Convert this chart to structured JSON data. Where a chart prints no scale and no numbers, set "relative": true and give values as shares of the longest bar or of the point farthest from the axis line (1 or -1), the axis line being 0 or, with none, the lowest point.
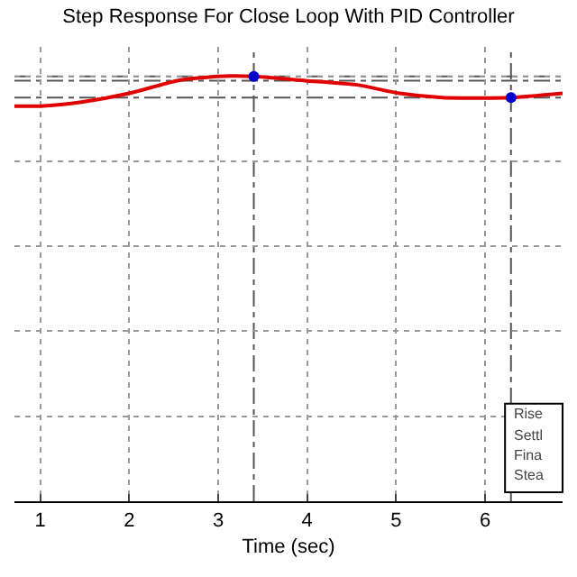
{
  "chart_data": {
    "type": "line",
    "title": "Step Response For Close Loop With PID Controller",
    "xlabel": "Time (sec)",
    "relative": true,
    "xlim": [
      0.71,
      6.87
    ],
    "xticks": [
      1,
      2,
      3,
      4,
      5,
      6
    ],
    "grid": true,
    "line_style": "solid",
    "series": [
      {
        "color": "#e00000",
        "marker": "none",
        "x": [
          0.71,
          1.0,
          1.48,
          2.0,
          2.54,
          3.0,
          3.4,
          3.98,
          4.56,
          5.04,
          5.52,
          6.29,
          6.87
        ],
        "values": [
          0.93,
          0.93,
          0.94,
          0.96,
          0.99,
          1.0,
          1.0,
          0.99,
          0.98,
          0.96,
          0.95,
          0.95,
          0.96
        ]
      },
      {
        "type": "scatter",
        "color": "#0000cc",
        "marker": "circle",
        "x": [
          3.4,
          6.29
        ],
        "values": [
          1.0,
          0.95
        ]
      }
    ],
    "ref_lines": [
      {
        "axis": "x",
        "value": 3.4,
        "color": "#555555",
        "line_style": "dashdot"
      },
      {
        "axis": "x",
        "value": 6.29,
        "color": "#555555",
        "line_style": "dashdot"
      },
      {
        "axis": "y",
        "value": 1.0,
        "color": "#555555",
        "line_style": "dashdot"
      },
      {
        "axis": "y",
        "value": 0.99,
        "color": "#555555",
        "line_style": "dashdot"
      },
      {
        "axis": "y",
        "value": 0.95,
        "color": "#555555",
        "line_style": "dashdot"
      }
    ],
    "annotations": [
      "Rise",
      "Settl",
      "Fina",
      "Stea"
    ]
  }
}
